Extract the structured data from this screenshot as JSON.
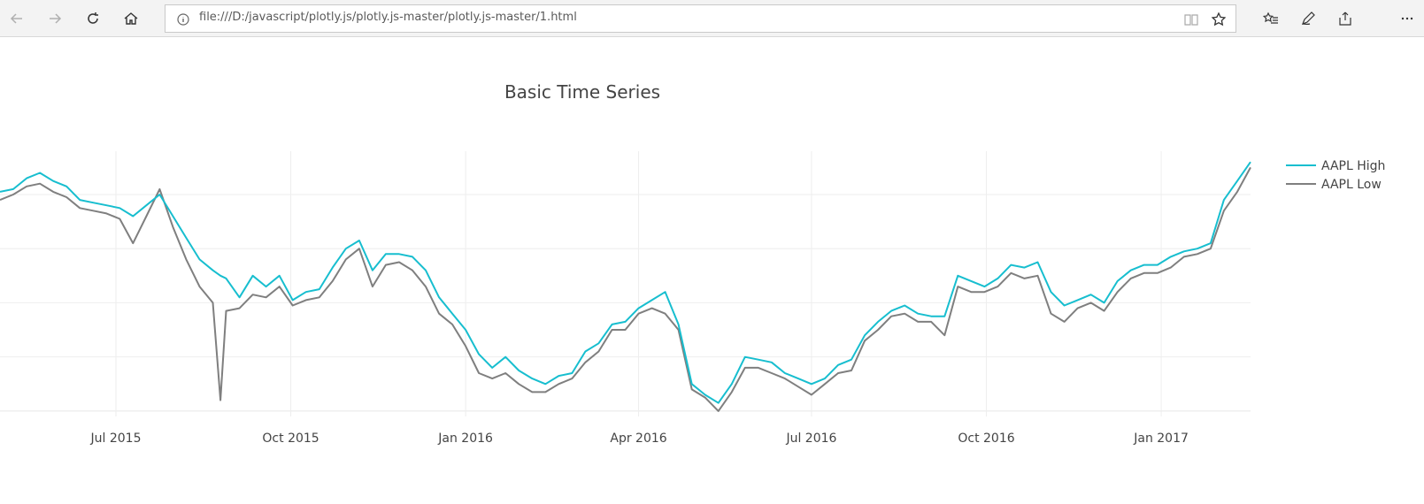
{
  "browser": {
    "url": "file:///D:/javascript/plotly.js/plotly.js-master/plotly.js-master/1.html",
    "icons": [
      "back-arrow-icon",
      "forward-arrow-icon",
      "refresh-icon",
      "home-icon",
      "info-icon",
      "reading-view-icon",
      "star-icon",
      "favorites-icon",
      "pen-icon",
      "share-icon",
      "more-icon"
    ]
  },
  "chart_data": {
    "type": "line",
    "title": "Basic Time Series",
    "xlabel": "",
    "ylabel": "",
    "x_tick_labels": [
      "Jul 2015",
      "Oct 2015",
      "Jan 2016",
      "Apr 2016",
      "Jul 2016",
      "Oct 2016",
      "Jan 2017"
    ],
    "x_range": [
      "2015-05-01",
      "2017-02-17"
    ],
    "ylim": [
      89,
      138
    ],
    "grid": true,
    "legend_position": "right",
    "series": [
      {
        "name": "AAPL High",
        "color": "#17becf",
        "points": [
          [
            "2015-05-01",
            130.5
          ],
          [
            "2015-05-08",
            131
          ],
          [
            "2015-05-15",
            133
          ],
          [
            "2015-05-22",
            134
          ],
          [
            "2015-05-29",
            132.5
          ],
          [
            "2015-06-05",
            131.5
          ],
          [
            "2015-06-12",
            129
          ],
          [
            "2015-06-19",
            128.5
          ],
          [
            "2015-06-26",
            128
          ],
          [
            "2015-07-03",
            127.5
          ],
          [
            "2015-07-10",
            126
          ],
          [
            "2015-07-17",
            128
          ],
          [
            "2015-07-24",
            130
          ],
          [
            "2015-07-31",
            126
          ],
          [
            "2015-08-07",
            122
          ],
          [
            "2015-08-14",
            118
          ],
          [
            "2015-08-21",
            116
          ],
          [
            "2015-08-25",
            115
          ],
          [
            "2015-08-28",
            114.5
          ],
          [
            "2015-09-04",
            111
          ],
          [
            "2015-09-11",
            115
          ],
          [
            "2015-09-18",
            113
          ],
          [
            "2015-09-25",
            115
          ],
          [
            "2015-10-02",
            110.5
          ],
          [
            "2015-10-09",
            112
          ],
          [
            "2015-10-16",
            112.5
          ],
          [
            "2015-10-23",
            116.5
          ],
          [
            "2015-10-30",
            120
          ],
          [
            "2015-11-06",
            121.5
          ],
          [
            "2015-11-13",
            116
          ],
          [
            "2015-11-20",
            119
          ],
          [
            "2015-11-27",
            119
          ],
          [
            "2015-12-04",
            118.5
          ],
          [
            "2015-12-11",
            116
          ],
          [
            "2015-12-18",
            111
          ],
          [
            "2015-12-25",
            108
          ],
          [
            "2016-01-01",
            105
          ],
          [
            "2016-01-08",
            100.5
          ],
          [
            "2016-01-15",
            98
          ],
          [
            "2016-01-22",
            100
          ],
          [
            "2016-01-29",
            97.5
          ],
          [
            "2016-02-05",
            96
          ],
          [
            "2016-02-12",
            95
          ],
          [
            "2016-02-19",
            96.5
          ],
          [
            "2016-02-26",
            97
          ],
          [
            "2016-03-04",
            101
          ],
          [
            "2016-03-11",
            102.5
          ],
          [
            "2016-03-18",
            106
          ],
          [
            "2016-03-25",
            106.5
          ],
          [
            "2016-04-01",
            109
          ],
          [
            "2016-04-08",
            110.5
          ],
          [
            "2016-04-15",
            112
          ],
          [
            "2016-04-22",
            106
          ],
          [
            "2016-04-29",
            95
          ],
          [
            "2016-05-06",
            93
          ],
          [
            "2016-05-13",
            91.5
          ],
          [
            "2016-05-20",
            95
          ],
          [
            "2016-05-27",
            100
          ],
          [
            "2016-06-03",
            99.5
          ],
          [
            "2016-06-10",
            99
          ],
          [
            "2016-06-17",
            97
          ],
          [
            "2016-06-24",
            96
          ],
          [
            "2016-07-01",
            95
          ],
          [
            "2016-07-08",
            96
          ],
          [
            "2016-07-15",
            98.5
          ],
          [
            "2016-07-22",
            99.5
          ],
          [
            "2016-07-29",
            104
          ],
          [
            "2016-08-05",
            106.5
          ],
          [
            "2016-08-12",
            108.5
          ],
          [
            "2016-08-19",
            109.5
          ],
          [
            "2016-08-26",
            108
          ],
          [
            "2016-09-02",
            107.5
          ],
          [
            "2016-09-09",
            107.5
          ],
          [
            "2016-09-16",
            115
          ],
          [
            "2016-09-23",
            114
          ],
          [
            "2016-09-30",
            113
          ],
          [
            "2016-10-07",
            114.5
          ],
          [
            "2016-10-14",
            117
          ],
          [
            "2016-10-21",
            116.5
          ],
          [
            "2016-10-28",
            117.5
          ],
          [
            "2016-11-04",
            112
          ],
          [
            "2016-11-11",
            109.5
          ],
          [
            "2016-11-18",
            110.5
          ],
          [
            "2016-11-25",
            111.5
          ],
          [
            "2016-12-02",
            110
          ],
          [
            "2016-12-09",
            114
          ],
          [
            "2016-12-16",
            116
          ],
          [
            "2016-12-23",
            117
          ],
          [
            "2016-12-30",
            117
          ],
          [
            "2017-01-06",
            118.5
          ],
          [
            "2017-01-13",
            119.5
          ],
          [
            "2017-01-20",
            120
          ],
          [
            "2017-01-27",
            121
          ],
          [
            "2017-02-03",
            129
          ],
          [
            "2017-02-10",
            132.5
          ],
          [
            "2017-02-17",
            136
          ]
        ]
      },
      {
        "name": "AAPL Low",
        "color": "#7f7f7f",
        "points": [
          [
            "2015-05-01",
            129
          ],
          [
            "2015-05-08",
            130
          ],
          [
            "2015-05-15",
            131.5
          ],
          [
            "2015-05-22",
            132
          ],
          [
            "2015-05-29",
            130.5
          ],
          [
            "2015-06-05",
            129.5
          ],
          [
            "2015-06-12",
            127.5
          ],
          [
            "2015-06-19",
            127
          ],
          [
            "2015-06-26",
            126.5
          ],
          [
            "2015-07-03",
            125.5
          ],
          [
            "2015-07-10",
            121
          ],
          [
            "2015-07-17",
            126
          ],
          [
            "2015-07-24",
            131
          ],
          [
            "2015-07-31",
            124
          ],
          [
            "2015-08-07",
            118
          ],
          [
            "2015-08-14",
            113
          ],
          [
            "2015-08-21",
            110
          ],
          [
            "2015-08-25",
            92
          ],
          [
            "2015-08-28",
            108.5
          ],
          [
            "2015-09-04",
            109
          ],
          [
            "2015-09-11",
            111.5
          ],
          [
            "2015-09-18",
            111
          ],
          [
            "2015-09-25",
            113
          ],
          [
            "2015-10-02",
            109.5
          ],
          [
            "2015-10-09",
            110.5
          ],
          [
            "2015-10-16",
            111
          ],
          [
            "2015-10-23",
            114
          ],
          [
            "2015-10-30",
            118
          ],
          [
            "2015-11-06",
            120
          ],
          [
            "2015-11-13",
            113
          ],
          [
            "2015-11-20",
            117
          ],
          [
            "2015-11-27",
            117.5
          ],
          [
            "2015-12-04",
            116
          ],
          [
            "2015-12-11",
            113
          ],
          [
            "2015-12-18",
            108
          ],
          [
            "2015-12-25",
            106
          ],
          [
            "2016-01-01",
            102
          ],
          [
            "2016-01-08",
            97
          ],
          [
            "2016-01-15",
            96
          ],
          [
            "2016-01-22",
            97
          ],
          [
            "2016-01-29",
            95
          ],
          [
            "2016-02-05",
            93.5
          ],
          [
            "2016-02-12",
            93.5
          ],
          [
            "2016-02-19",
            95
          ],
          [
            "2016-02-26",
            96
          ],
          [
            "2016-03-04",
            99
          ],
          [
            "2016-03-11",
            101
          ],
          [
            "2016-03-18",
            105
          ],
          [
            "2016-03-25",
            105
          ],
          [
            "2016-04-01",
            108
          ],
          [
            "2016-04-08",
            109
          ],
          [
            "2016-04-15",
            108
          ],
          [
            "2016-04-22",
            105
          ],
          [
            "2016-04-29",
            94
          ],
          [
            "2016-05-06",
            92.5
          ],
          [
            "2016-05-13",
            90
          ],
          [
            "2016-05-20",
            93.5
          ],
          [
            "2016-05-27",
            98
          ],
          [
            "2016-06-03",
            98
          ],
          [
            "2016-06-10",
            97
          ],
          [
            "2016-06-17",
            96
          ],
          [
            "2016-06-24",
            94.5
          ],
          [
            "2016-07-01",
            93
          ],
          [
            "2016-07-08",
            95
          ],
          [
            "2016-07-15",
            97
          ],
          [
            "2016-07-22",
            97.5
          ],
          [
            "2016-07-29",
            103
          ],
          [
            "2016-08-05",
            105
          ],
          [
            "2016-08-12",
            107.5
          ],
          [
            "2016-08-19",
            108
          ],
          [
            "2016-08-26",
            106.5
          ],
          [
            "2016-09-02",
            106.5
          ],
          [
            "2016-09-09",
            104
          ],
          [
            "2016-09-16",
            113
          ],
          [
            "2016-09-23",
            112
          ],
          [
            "2016-09-30",
            112
          ],
          [
            "2016-10-07",
            113
          ],
          [
            "2016-10-14",
            115.5
          ],
          [
            "2016-10-21",
            114.5
          ],
          [
            "2016-10-28",
            115
          ],
          [
            "2016-11-04",
            108
          ],
          [
            "2016-11-11",
            106.5
          ],
          [
            "2016-11-18",
            109
          ],
          [
            "2016-11-25",
            110
          ],
          [
            "2016-12-02",
            108.5
          ],
          [
            "2016-12-09",
            112
          ],
          [
            "2016-12-16",
            114.5
          ],
          [
            "2016-12-23",
            115.5
          ],
          [
            "2016-12-30",
            115.5
          ],
          [
            "2017-01-06",
            116.5
          ],
          [
            "2017-01-13",
            118.5
          ],
          [
            "2017-01-20",
            119
          ],
          [
            "2017-01-27",
            120
          ],
          [
            "2017-02-03",
            127
          ],
          [
            "2017-02-10",
            130.5
          ],
          [
            "2017-02-17",
            135
          ]
        ]
      }
    ]
  }
}
